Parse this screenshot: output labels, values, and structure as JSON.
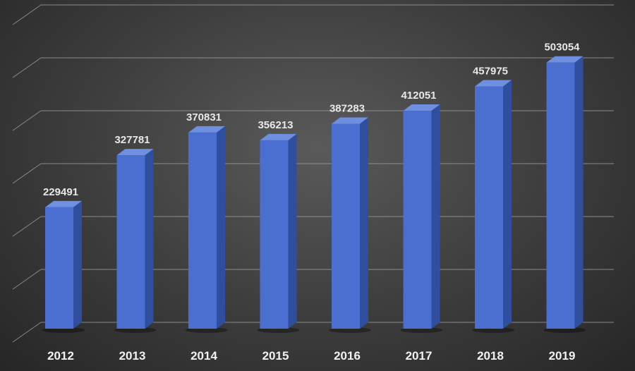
{
  "chart_data": {
    "type": "bar",
    "title": "",
    "xlabel": "",
    "ylabel": "",
    "categories": [
      "2012",
      "2013",
      "2014",
      "2015",
      "2016",
      "2017",
      "2018",
      "2019"
    ],
    "values": [
      229491,
      327781,
      370831,
      356213,
      387283,
      412051,
      457975,
      503054
    ],
    "value_labels": [
      "229491",
      "327781",
      "370831",
      "356213",
      "387283",
      "412051",
      "457975",
      "503054"
    ],
    "ylim": [
      0,
      600000
    ],
    "grid": true,
    "style": "3d-column",
    "colors": {
      "bar_front": "#4a6fd0",
      "bar_side": "#2f4f9e",
      "bar_top": "#6f8fe0",
      "grid": "#9a9a9a",
      "background": "#3f3f3f"
    }
  }
}
